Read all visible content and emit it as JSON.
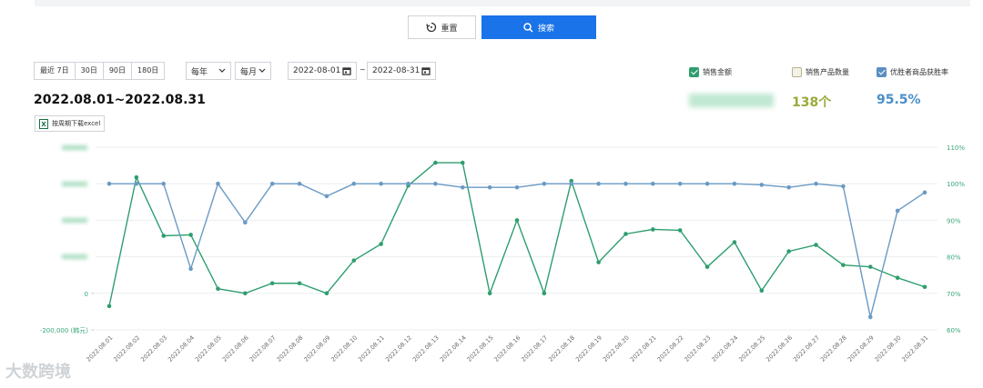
{
  "toolbar": {
    "reset": "重置",
    "search": "搜索"
  },
  "filters": {
    "ranges": [
      "最近 7日",
      "30日",
      "90日",
      "180日"
    ],
    "year": "每年",
    "month": "每月",
    "start": "2022-08-01",
    "separator": "~",
    "end": "2022-08-31"
  },
  "toggles": [
    {
      "label": "销售金额",
      "checked": true,
      "color": "#2e9e6e"
    },
    {
      "label": "销售产品数量",
      "checked": false,
      "color": "#b9b08a"
    },
    {
      "label": "优胜者商品获胜率",
      "checked": true,
      "color": "#5b8fc2"
    }
  ],
  "period": "2022.08.01~2022.08.31",
  "download": "按周期下载excel",
  "metrics": {
    "count": "138个",
    "rate": "95.5%"
  },
  "chart_data": {
    "type": "line",
    "categories": [
      "2022.08.01",
      "2022.08.02",
      "2022.08.03",
      "2022.08.04",
      "2022.08.05",
      "2022.08.06",
      "2022.08.07",
      "2022.08.08",
      "2022.08.09",
      "2022.08.10",
      "2022.08.11",
      "2022.08.12",
      "2022.08.13",
      "2022.08.14",
      "2022.08.15",
      "2022.08.16",
      "2022.08.17",
      "2022.08.18",
      "2022.08.19",
      "2022.08.20",
      "2022.08.21",
      "2022.08.22",
      "2022.08.23",
      "2022.08.24",
      "2022.08.25",
      "2022.08.26",
      "2022.08.27",
      "2022.08.28",
      "2022.08.29",
      "2022.08.30",
      "2022.08.31"
    ],
    "series": [
      {
        "color": "#2e9e6e",
        "values": [
          -70000,
          635000,
          315000,
          320000,
          25000,
          0,
          55000,
          55000,
          0,
          180000,
          270000,
          590000,
          715000,
          715000,
          0,
          400000,
          0,
          615000,
          170000,
          325000,
          350000,
          345000,
          145000,
          280000,
          15000,
          230000,
          265000,
          155000,
          145000,
          85000,
          35000
        ]
      },
      {
        "color": "#6a9ac4",
        "axis": "y2",
        "values": [
          100,
          100,
          100,
          76.7,
          100,
          89.4,
          100,
          100,
          96.6,
          100,
          100,
          100,
          100,
          99,
          99,
          99,
          100,
          100,
          100,
          100,
          100,
          100,
          100,
          100,
          99.7,
          99,
          100,
          99.3,
          63.5,
          92.6,
          97.6
        ]
      }
    ],
    "ylim": [
      -200000,
      800000
    ],
    "yticks": [
      {
        "value": -200000,
        "label": "-200,000 (韩元)"
      },
      0
    ],
    "y2lim": [
      60,
      110
    ],
    "y2ticks": [
      {
        "value": 60,
        "label": "60%"
      },
      {
        "value": 70,
        "label": "70%"
      },
      {
        "value": 80,
        "label": "80%"
      },
      {
        "value": 90,
        "label": "90%"
      },
      {
        "value": 100,
        "label": "100%"
      },
      {
        "value": 110,
        "label": "110%"
      }
    ],
    "grid": true
  },
  "watermark": "大数跨境"
}
